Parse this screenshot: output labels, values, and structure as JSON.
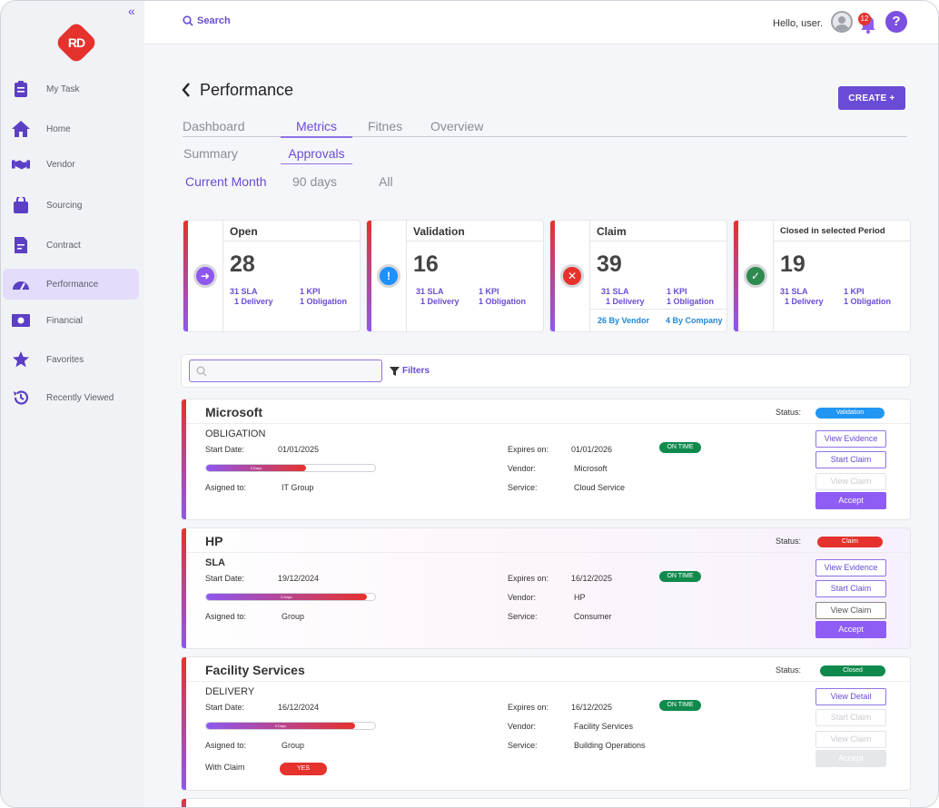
{
  "sidebar": {
    "collapse_label": "«",
    "logo_text": "RD",
    "items": [
      {
        "label": "My Task",
        "icon": "clipboard-icon"
      },
      {
        "label": "Home",
        "icon": "home-icon"
      },
      {
        "label": "Vendor",
        "icon": "handshake-icon"
      },
      {
        "label": "Sourcing",
        "icon": "shopping-bag-icon"
      },
      {
        "label": "Contract",
        "icon": "contract-icon"
      },
      {
        "label": "Performance",
        "icon": "gauge-icon"
      },
      {
        "label": "Financial",
        "icon": "money-icon"
      },
      {
        "label": "Favorites",
        "icon": "star-icon"
      },
      {
        "label": "Recently Viewed",
        "icon": "history-icon"
      }
    ]
  },
  "header": {
    "search_label": "Search",
    "greeting": "Hello, user.",
    "notification_count": "12",
    "help_label": "?"
  },
  "page": {
    "title": "Performance",
    "create_label": "CREATE +",
    "tabs_main": [
      "Dashboard",
      "Metrics",
      "Fitnes",
      "Overview"
    ],
    "tabs_sub": [
      "Summary",
      "Approvals"
    ],
    "tabs_period": [
      "Current Month",
      "90 days",
      "All"
    ]
  },
  "stats": [
    {
      "title": "Open",
      "value": "28",
      "sla": "31 SLA",
      "kpi": "1 KPI",
      "delivery": "1 Delivery",
      "obligation": "1 Obligation",
      "color": "#8d57f0"
    },
    {
      "title": "Validation",
      "value": "16",
      "sla": "31 SLA",
      "kpi": "1 KPI",
      "delivery": "1 Delivery",
      "obligation": "1 Obligation",
      "color": "#1e90ff"
    },
    {
      "title": "Claim",
      "value": "39",
      "sla": "31 SLA",
      "kpi": "1 KPI",
      "delivery": "1 Delivery",
      "obligation": "1 Obligation",
      "by_vendor": "26 By Vendor",
      "by_company": "4 By Company",
      "color": "#e5322d"
    },
    {
      "title": "Closed in selected Period",
      "value": "19",
      "sla": "31 SLA",
      "kpi": "1 KPI",
      "delivery": "1 Delivery",
      "obligation": "1 Obligation",
      "color": "#2e8b4f"
    }
  ],
  "filter": {
    "label": "Filters",
    "search_placeholder": ""
  },
  "labels": {
    "status": "Status:",
    "start_date": "Start Date:",
    "assigned_to": "Asigned to:",
    "expires_on": "Expires on:",
    "vendor": "Vendor:",
    "service": "Service:",
    "with_claim": "With Claim",
    "on_time": "ON TIME",
    "view_evidence": "View Evidence",
    "start_claim": "Start Claim",
    "view_claim": "View Claim",
    "view_detail": "View Detail",
    "accept": "Accept",
    "progress_text": "3 Days",
    "yes": "YES"
  },
  "cards": [
    {
      "title": "Microsoft",
      "status": "Validation",
      "status_color": "#2196f3",
      "type": "OBLIGATION",
      "start_date": "01/01/2025",
      "progress": 0.59,
      "assigned": "IT Group",
      "expires": "01/01/2026",
      "vendor": "Microsoft",
      "service": "Cloud Service"
    },
    {
      "title": "HP",
      "status": "Claim",
      "status_color": "#e5322d",
      "type": "SLA",
      "start_date": "19/12/2024",
      "progress": 0.95,
      "assigned": "Group",
      "expires": "16/12/2025",
      "vendor": "HP",
      "service": "Consumer"
    },
    {
      "title": "Facility Services",
      "status": "Closed",
      "status_color": "#0f8a4c",
      "type": "DELIVERY",
      "start_date": "16/12/2024",
      "progress": 0.88,
      "assigned": "Group",
      "expires": "16/12/2025",
      "vendor": "Facility Services",
      "service": "Building Operations"
    }
  ]
}
